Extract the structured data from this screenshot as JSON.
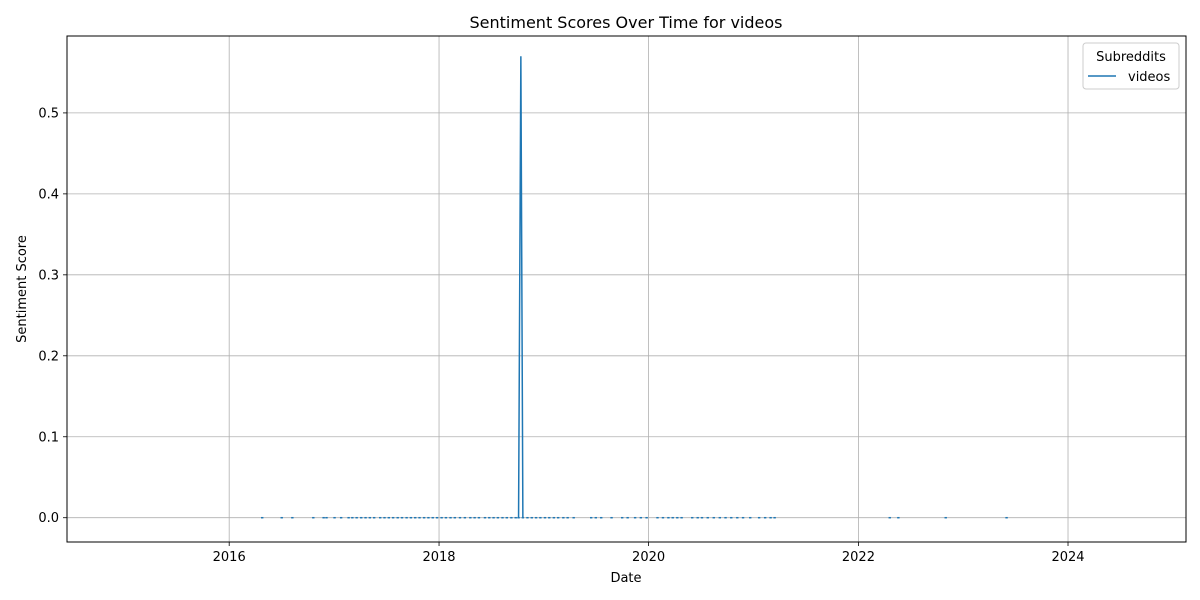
{
  "chart_data": {
    "type": "line",
    "title": "Sentiment Scores Over Time for videos",
    "xlabel": "Date",
    "ylabel": "Sentiment Score",
    "xlim": [
      "2014-06-15",
      "2025-02-15"
    ],
    "ylim": [
      -0.03,
      0.595
    ],
    "x_ticks": [
      "2016",
      "2018",
      "2020",
      "2022",
      "2024"
    ],
    "y_ticks": [
      "0.0",
      "0.1",
      "0.2",
      "0.3",
      "0.4",
      "0.5"
    ],
    "grid": true,
    "legend": {
      "title": "Subreddits",
      "placement": "top-right"
    },
    "series": [
      {
        "name": "videos",
        "color": "#1f77b4",
        "points": [
          [
            "2016-04-25",
            0.0
          ],
          [
            "2016-07-02",
            0.0
          ],
          [
            "2016-08-08",
            0.0
          ],
          [
            "2016-10-20",
            0.0
          ],
          [
            "2016-11-25",
            0.0
          ],
          [
            "2016-12-05",
            0.0
          ],
          [
            "2017-01-02",
            0.0
          ],
          [
            "2017-01-25",
            0.0
          ],
          [
            "2017-02-20",
            0.0
          ],
          [
            "2017-03-05",
            0.0
          ],
          [
            "2017-03-20",
            0.0
          ],
          [
            "2017-04-05",
            0.0
          ],
          [
            "2017-04-20",
            0.0
          ],
          [
            "2017-05-05",
            0.0
          ],
          [
            "2017-05-20",
            0.0
          ],
          [
            "2017-06-10",
            0.0
          ],
          [
            "2017-06-25",
            0.0
          ],
          [
            "2017-07-10",
            0.0
          ],
          [
            "2017-07-25",
            0.0
          ],
          [
            "2017-08-10",
            0.0
          ],
          [
            "2017-08-25",
            0.0
          ],
          [
            "2017-09-10",
            0.0
          ],
          [
            "2017-09-25",
            0.0
          ],
          [
            "2017-10-10",
            0.0
          ],
          [
            "2017-10-25",
            0.0
          ],
          [
            "2017-11-10",
            0.0
          ],
          [
            "2017-11-25",
            0.0
          ],
          [
            "2017-12-10",
            0.0
          ],
          [
            "2017-12-25",
            0.0
          ],
          [
            "2018-01-10",
            0.0
          ],
          [
            "2018-01-25",
            0.0
          ],
          [
            "2018-02-10",
            0.0
          ],
          [
            "2018-02-25",
            0.0
          ],
          [
            "2018-03-15",
            0.0
          ],
          [
            "2018-04-01",
            0.0
          ],
          [
            "2018-04-20",
            0.0
          ],
          [
            "2018-05-05",
            0.0
          ],
          [
            "2018-05-20",
            0.0
          ],
          [
            "2018-06-10",
            0.0
          ],
          [
            "2018-06-25",
            0.0
          ],
          [
            "2018-07-10",
            0.0
          ],
          [
            "2018-07-25",
            0.0
          ],
          [
            "2018-08-10",
            0.0
          ],
          [
            "2018-08-25",
            0.0
          ],
          [
            "2018-09-10",
            0.0
          ],
          [
            "2018-09-25",
            0.0
          ],
          [
            "2018-10-05",
            0.0
          ],
          [
            "2018-10-13",
            0.57
          ],
          [
            "2018-10-20",
            0.0
          ],
          [
            "2018-11-05",
            0.0
          ],
          [
            "2018-11-20",
            0.0
          ],
          [
            "2018-12-05",
            0.0
          ],
          [
            "2018-12-20",
            0.0
          ],
          [
            "2019-01-05",
            0.0
          ],
          [
            "2019-01-20",
            0.0
          ],
          [
            "2019-02-05",
            0.0
          ],
          [
            "2019-02-20",
            0.0
          ],
          [
            "2019-03-10",
            0.0
          ],
          [
            "2019-03-25",
            0.0
          ],
          [
            "2019-04-15",
            0.0
          ],
          [
            "2019-06-15",
            0.0
          ],
          [
            "2019-07-01",
            0.0
          ],
          [
            "2019-07-20",
            0.0
          ],
          [
            "2019-08-25",
            0.0
          ],
          [
            "2019-10-01",
            0.0
          ],
          [
            "2019-10-20",
            0.0
          ],
          [
            "2019-11-15",
            0.0
          ],
          [
            "2019-12-05",
            0.0
          ],
          [
            "2019-12-25",
            0.0
          ],
          [
            "2020-02-01",
            0.0
          ],
          [
            "2020-02-20",
            0.0
          ],
          [
            "2020-03-10",
            0.0
          ],
          [
            "2020-03-25",
            0.0
          ],
          [
            "2020-04-10",
            0.0
          ],
          [
            "2020-04-25",
            0.0
          ],
          [
            "2020-06-01",
            0.0
          ],
          [
            "2020-06-20",
            0.0
          ],
          [
            "2020-07-05",
            0.0
          ],
          [
            "2020-07-25",
            0.0
          ],
          [
            "2020-08-15",
            0.0
          ],
          [
            "2020-09-05",
            0.0
          ],
          [
            "2020-09-25",
            0.0
          ],
          [
            "2020-10-15",
            0.0
          ],
          [
            "2020-11-05",
            0.0
          ],
          [
            "2020-11-25",
            0.0
          ],
          [
            "2020-12-20",
            0.0
          ],
          [
            "2021-01-20",
            0.0
          ],
          [
            "2021-02-10",
            0.0
          ],
          [
            "2021-03-01",
            0.0
          ],
          [
            "2021-03-15",
            0.0
          ],
          [
            "2022-04-20",
            0.0
          ],
          [
            "2022-05-20",
            0.0
          ],
          [
            "2022-11-01",
            0.0
          ],
          [
            "2023-06-01",
            0.0
          ]
        ]
      }
    ]
  }
}
